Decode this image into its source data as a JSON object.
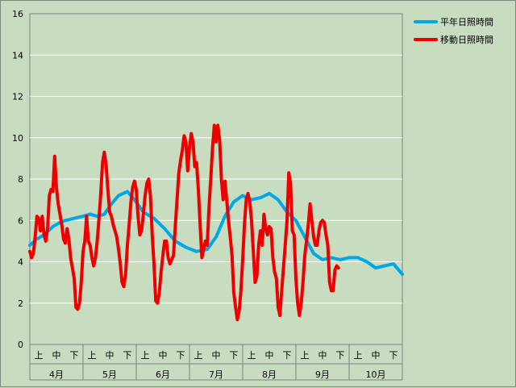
{
  "chart_data": {
    "type": "line",
    "ylim": [
      0,
      16
    ],
    "yticks": [
      "0",
      "2",
      "4",
      "6",
      "8",
      "10",
      "12",
      "14",
      "16"
    ],
    "grid": "horizontal",
    "legend_position": "top-right",
    "months": [
      "4月",
      "5月",
      "6月",
      "7月",
      "8月",
      "9月",
      "10月"
    ],
    "periods": [
      "上",
      "中",
      "下"
    ],
    "x_points": 210,
    "series": [
      {
        "name": "平年日照時間",
        "color": "#00a8e8",
        "points": [
          [
            0,
            4.8
          ],
          [
            4,
            5.1
          ],
          [
            8,
            5.3
          ],
          [
            13,
            5.7
          ],
          [
            17,
            5.9
          ],
          [
            20,
            6.0
          ],
          [
            25,
            6.1
          ],
          [
            30,
            6.2
          ],
          [
            34,
            6.3
          ],
          [
            38,
            6.2
          ],
          [
            42,
            6.3
          ],
          [
            46,
            6.8
          ],
          [
            50,
            7.2
          ],
          [
            55,
            7.4
          ],
          [
            59,
            7.0
          ],
          [
            64,
            6.4
          ],
          [
            70,
            6.1
          ],
          [
            76,
            5.6
          ],
          [
            82,
            5.0
          ],
          [
            88,
            4.7
          ],
          [
            94,
            4.5
          ],
          [
            100,
            4.6
          ],
          [
            105,
            5.2
          ],
          [
            110,
            6.2
          ],
          [
            115,
            6.9
          ],
          [
            120,
            7.2
          ],
          [
            125,
            7.0
          ],
          [
            130,
            7.1
          ],
          [
            135,
            7.3
          ],
          [
            140,
            7.0
          ],
          [
            145,
            6.4
          ],
          [
            150,
            6.0
          ],
          [
            155,
            5.2
          ],
          [
            160,
            4.4
          ],
          [
            165,
            4.1
          ],
          [
            170,
            4.2
          ],
          [
            175,
            4.1
          ],
          [
            180,
            4.2
          ],
          [
            185,
            4.2
          ],
          [
            190,
            4.0
          ],
          [
            195,
            3.7
          ],
          [
            200,
            3.8
          ],
          [
            205,
            3.9
          ],
          [
            210,
            3.4
          ]
        ]
      },
      {
        "name": "移動日照時間",
        "color": "#ee0000",
        "points": [
          [
            0,
            4.5
          ],
          [
            1,
            4.2
          ],
          [
            2,
            4.4
          ],
          [
            3,
            5.2
          ],
          [
            4,
            6.2
          ],
          [
            5,
            6.1
          ],
          [
            6,
            5.5
          ],
          [
            7,
            6.2
          ],
          [
            8,
            5.3
          ],
          [
            9,
            5.0
          ],
          [
            10,
            5.6
          ],
          [
            11,
            7.2
          ],
          [
            12,
            7.5
          ],
          [
            13,
            7.4
          ],
          [
            14,
            9.1
          ],
          [
            15,
            7.6
          ],
          [
            16,
            6.8
          ],
          [
            17,
            6.3
          ],
          [
            18,
            5.8
          ],
          [
            19,
            5.1
          ],
          [
            20,
            4.9
          ],
          [
            21,
            5.6
          ],
          [
            22,
            5.1
          ],
          [
            23,
            4.2
          ],
          [
            24,
            3.7
          ],
          [
            25,
            3.2
          ],
          [
            26,
            1.8
          ],
          [
            27,
            1.7
          ],
          [
            28,
            2.0
          ],
          [
            29,
            3.0
          ],
          [
            30,
            4.5
          ],
          [
            31,
            5.0
          ],
          [
            32,
            6.2
          ],
          [
            33,
            5.0
          ],
          [
            34,
            4.8
          ],
          [
            35,
            4.2
          ],
          [
            36,
            3.8
          ],
          [
            37,
            4.2
          ],
          [
            38,
            5.0
          ],
          [
            39,
            6.1
          ],
          [
            40,
            7.3
          ],
          [
            41,
            8.8
          ],
          [
            42,
            9.3
          ],
          [
            43,
            8.7
          ],
          [
            44,
            7.5
          ],
          [
            45,
            6.4
          ],
          [
            46,
            6.2
          ],
          [
            47,
            5.8
          ],
          [
            48,
            5.5
          ],
          [
            49,
            5.2
          ],
          [
            50,
            4.6
          ],
          [
            51,
            3.9
          ],
          [
            52,
            3.0
          ],
          [
            53,
            2.8
          ],
          [
            54,
            3.4
          ],
          [
            55,
            4.8
          ],
          [
            56,
            5.8
          ],
          [
            57,
            6.9
          ],
          [
            58,
            7.6
          ],
          [
            59,
            7.9
          ],
          [
            60,
            7.5
          ],
          [
            61,
            6.2
          ],
          [
            62,
            5.3
          ],
          [
            63,
            5.5
          ],
          [
            64,
            6.3
          ],
          [
            65,
            7.2
          ],
          [
            66,
            7.8
          ],
          [
            67,
            8.0
          ],
          [
            68,
            7.2
          ],
          [
            69,
            5.3
          ],
          [
            70,
            3.9
          ],
          [
            71,
            2.1
          ],
          [
            72,
            2.0
          ],
          [
            73,
            2.5
          ],
          [
            74,
            3.5
          ],
          [
            75,
            4.3
          ],
          [
            76,
            5.0
          ],
          [
            77,
            5.0
          ],
          [
            78,
            4.2
          ],
          [
            79,
            3.9
          ],
          [
            80,
            4.1
          ],
          [
            81,
            4.3
          ],
          [
            82,
            5.7
          ],
          [
            83,
            7.0
          ],
          [
            84,
            8.3
          ],
          [
            85,
            8.9
          ],
          [
            86,
            9.4
          ],
          [
            87,
            10.1
          ],
          [
            88,
            9.8
          ],
          [
            89,
            8.4
          ],
          [
            90,
            9.5
          ],
          [
            91,
            10.2
          ],
          [
            92,
            9.8
          ],
          [
            93,
            8.6
          ],
          [
            94,
            8.8
          ],
          [
            95,
            7.5
          ],
          [
            96,
            5.8
          ],
          [
            97,
            4.2
          ],
          [
            98,
            4.6
          ],
          [
            99,
            5.0
          ],
          [
            100,
            4.8
          ],
          [
            101,
            6.6
          ],
          [
            102,
            8.0
          ],
          [
            103,
            9.5
          ],
          [
            104,
            10.6
          ],
          [
            105,
            9.8
          ],
          [
            106,
            10.6
          ],
          [
            107,
            9.9
          ],
          [
            108,
            8.0
          ],
          [
            109,
            7.0
          ],
          [
            110,
            7.9
          ],
          [
            111,
            7.0
          ],
          [
            112,
            6.0
          ],
          [
            113,
            5.2
          ],
          [
            114,
            4.3
          ],
          [
            115,
            2.5
          ],
          [
            116,
            1.8
          ],
          [
            117,
            1.2
          ],
          [
            118,
            1.6
          ],
          [
            119,
            2.6
          ],
          [
            120,
            4.1
          ],
          [
            121,
            5.8
          ],
          [
            122,
            7.0
          ],
          [
            123,
            7.3
          ],
          [
            124,
            6.9
          ],
          [
            125,
            6.0
          ],
          [
            126,
            4.5
          ],
          [
            127,
            3.0
          ],
          [
            128,
            3.3
          ],
          [
            129,
            4.8
          ],
          [
            130,
            5.5
          ],
          [
            131,
            4.8
          ],
          [
            132,
            6.3
          ],
          [
            133,
            5.6
          ],
          [
            134,
            5.3
          ],
          [
            135,
            5.7
          ],
          [
            136,
            5.6
          ],
          [
            137,
            4.2
          ],
          [
            138,
            3.5
          ],
          [
            139,
            3.2
          ],
          [
            140,
            1.8
          ],
          [
            141,
            1.4
          ],
          [
            142,
            2.6
          ],
          [
            143,
            3.7
          ],
          [
            144,
            4.8
          ],
          [
            145,
            6.0
          ],
          [
            146,
            8.3
          ],
          [
            147,
            7.8
          ],
          [
            148,
            5.5
          ],
          [
            149,
            5.3
          ],
          [
            150,
            3.2
          ],
          [
            151,
            2.0
          ],
          [
            152,
            1.4
          ],
          [
            153,
            2.0
          ],
          [
            154,
            3.0
          ],
          [
            155,
            4.3
          ],
          [
            156,
            5.0
          ],
          [
            157,
            5.8
          ],
          [
            158,
            6.8
          ],
          [
            159,
            6.0
          ],
          [
            160,
            5.2
          ],
          [
            161,
            4.8
          ],
          [
            162,
            4.8
          ],
          [
            163,
            5.5
          ],
          [
            164,
            5.9
          ],
          [
            165,
            6.0
          ],
          [
            166,
            5.9
          ],
          [
            167,
            5.3
          ],
          [
            168,
            4.8
          ],
          [
            169,
            3.0
          ],
          [
            170,
            2.6
          ],
          [
            171,
            2.6
          ],
          [
            172,
            3.6
          ],
          [
            173,
            3.8
          ],
          [
            174,
            3.7
          ]
        ]
      }
    ]
  }
}
